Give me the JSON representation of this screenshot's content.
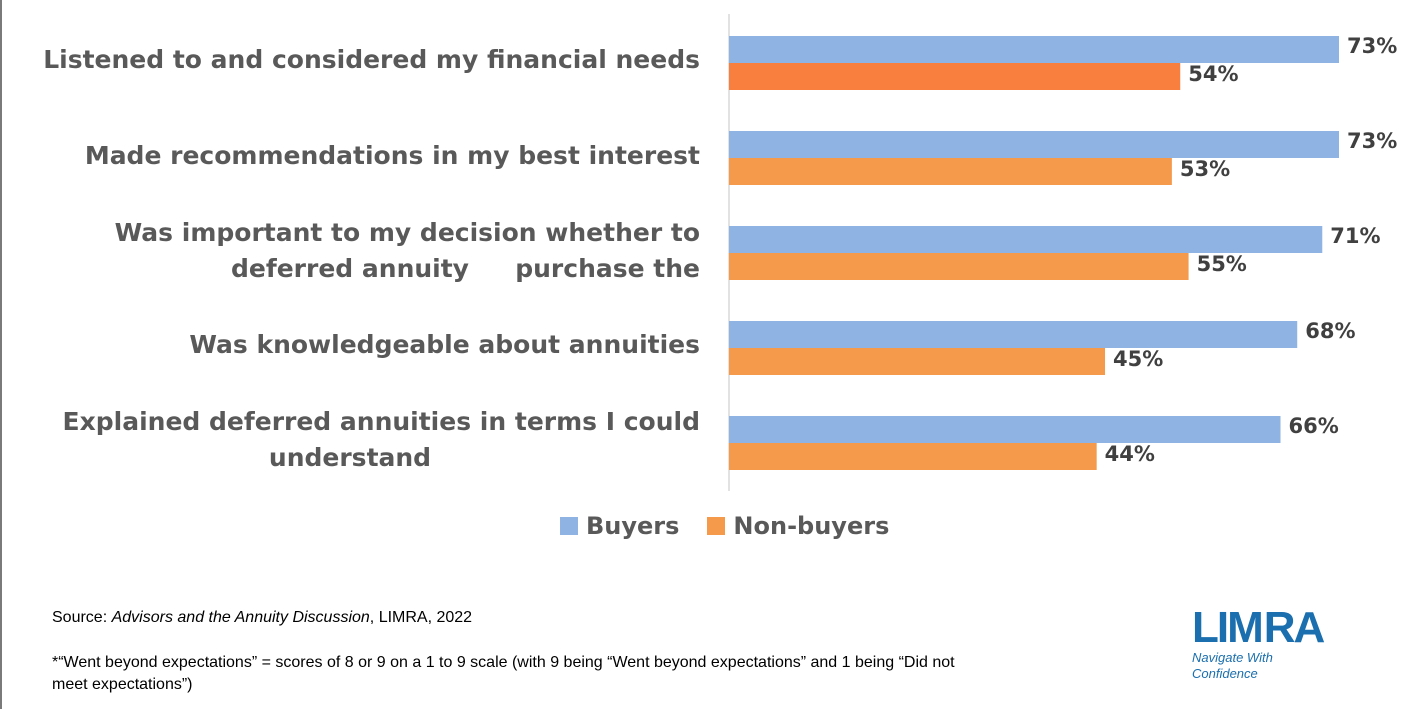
{
  "chart_data": {
    "type": "bar",
    "orientation": "horizontal",
    "categories": [
      "Listened to and considered my financial needs",
      "Made recommendations in my best interest",
      "Was important to my decision whether to purchase the deferred annuity",
      "Was knowledgeable about annuities",
      "Explained deferred annuities in terms I could understand"
    ],
    "series": [
      {
        "name": "Buyers",
        "color": "#8fb4e3",
        "values": [
          73,
          73,
          71,
          68,
          66
        ]
      },
      {
        "name": "Non-buyers",
        "color": "#f59a4a",
        "values": [
          54,
          53,
          55,
          45,
          44
        ]
      }
    ],
    "highlight": {
      "series": 1,
      "index": 0,
      "color": "#f97f3e"
    },
    "value_labels": [
      [
        "73%",
        "73%",
        "71%",
        "68%",
        "66%"
      ],
      [
        "54%",
        "53%",
        "55%",
        "45%",
        "44%"
      ]
    ],
    "xlim": [
      0,
      100
    ],
    "legend": "bottom-center",
    "grid": false
  },
  "legend": {
    "buyers": "Buyers",
    "non_buyers": "Non-buyers"
  },
  "footer": {
    "source_prefix": "Source: ",
    "source_title": "Advisors and the Annuity Discussion",
    "source_suffix": ", LIMRA, 2022",
    "footnote": "*“Went beyond expectations” = scores of 8 or 9 on a 1 to 9 scale (with 9 being “Went beyond expectations” and 1 being “Did not meet expectations”)"
  },
  "logo": {
    "word_left": "LIM",
    "word_right": "RA",
    "tagline_1": "Navigate With",
    "tagline_2": "Confidence"
  }
}
